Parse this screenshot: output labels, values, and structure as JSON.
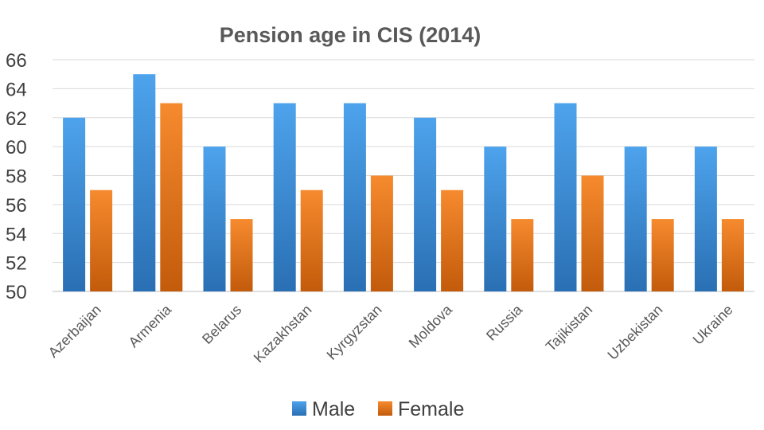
{
  "chart_data": {
    "type": "bar",
    "title": "Pension age in CIS (2014)",
    "xlabel": "",
    "ylabel": "",
    "categories": [
      "Azerbaijan",
      "Armenia",
      "Belarus",
      "Kazakhstan",
      "Kyrgyzstan",
      "Moldova",
      "Russia",
      "Tajikistan",
      "Uzbekistan",
      "Ukraine"
    ],
    "series": [
      {
        "name": "Male",
        "values": [
          62,
          65,
          60,
          63,
          63,
          62,
          60,
          63,
          60,
          60
        ],
        "color": "#3b8fd9"
      },
      {
        "name": "Female",
        "values": [
          57,
          63,
          55,
          57,
          58,
          57,
          55,
          58,
          55,
          55
        ],
        "color": "#ed7218"
      }
    ],
    "ylim": [
      50,
      66
    ],
    "yticks": [
      50,
      52,
      54,
      56,
      58,
      60,
      62,
      64,
      66
    ],
    "grid": true,
    "legend_position": "bottom"
  }
}
